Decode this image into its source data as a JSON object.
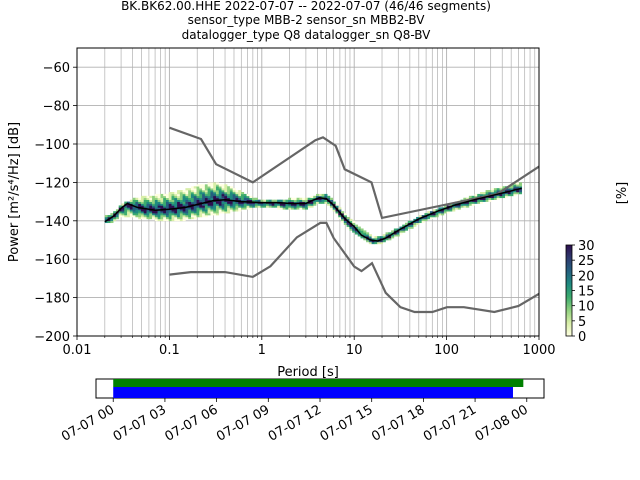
{
  "title": {
    "line1": "BK.BK62.00.HHE   2022-07-07 -- 2022-07-07  (46/46 segments)",
    "line2": "sensor_type MBB-2 sensor_sn MBB2-BV",
    "line3": "datalogger_type Q8 datalogger_sn Q8-BV"
  },
  "chart_data": {
    "type": "heatmap",
    "xlabel": "Period [s]",
    "ylabel": "Power [m²/s⁴/Hz] [dB]",
    "xscale": "log",
    "xlim": [
      0.01,
      1000
    ],
    "ylim": [
      -200,
      -50
    ],
    "x_ticks": [
      {
        "value": 0.01,
        "label": "0.01"
      },
      {
        "value": 0.1,
        "label": "0.1"
      },
      {
        "value": 1,
        "label": "1"
      },
      {
        "value": 10,
        "label": "10"
      },
      {
        "value": 100,
        "label": "100"
      },
      {
        "value": 1000,
        "label": "1000"
      }
    ],
    "y_ticks": [
      {
        "value": -60,
        "label": "−60"
      },
      {
        "value": -80,
        "label": "−80"
      },
      {
        "value": -100,
        "label": "−100"
      },
      {
        "value": -120,
        "label": "−120"
      },
      {
        "value": -140,
        "label": "−140"
      },
      {
        "value": -160,
        "label": "−160"
      },
      {
        "value": -180,
        "label": "−180"
      },
      {
        "value": -200,
        "label": "−200"
      }
    ],
    "grid": true,
    "colorbar": {
      "label": "[%]",
      "range": [
        0,
        30
      ],
      "ticks": [
        {
          "value": 0,
          "label": "0"
        },
        {
          "value": 5,
          "label": "5"
        },
        {
          "value": 10,
          "label": "10"
        },
        {
          "value": 15,
          "label": "15"
        },
        {
          "value": 20,
          "label": "20"
        },
        {
          "value": 25,
          "label": "25"
        },
        {
          "value": 30,
          "label": "30"
        }
      ],
      "colors": [
        "#ffffe0",
        "#d8eea8",
        "#8fd07f",
        "#3cab6e",
        "#1f8a80",
        "#25607f",
        "#2e3a6e",
        "#2d0f4e"
      ]
    },
    "noise_models": [
      {
        "name": "high",
        "points": [
          [
            0.1,
            -91.5
          ],
          [
            0.22,
            -97.4
          ],
          [
            0.32,
            -110.5
          ],
          [
            0.8,
            -120.0
          ],
          [
            3.8,
            -98.0
          ],
          [
            4.6,
            -96.5
          ],
          [
            6.3,
            -101.0
          ],
          [
            7.9,
            -113.2
          ],
          [
            15.4,
            -120.0
          ],
          [
            20.0,
            -138.5
          ],
          [
            354.8,
            -126.0
          ],
          [
            10000,
            -80.1
          ]
        ]
      },
      {
        "name": "low",
        "points": [
          [
            0.1,
            -168.0
          ],
          [
            0.17,
            -166.7
          ],
          [
            0.4,
            -166.7
          ],
          [
            0.8,
            -169.2
          ],
          [
            1.24,
            -163.7
          ],
          [
            2.4,
            -148.6
          ],
          [
            4.3,
            -141.1
          ],
          [
            5.0,
            -141.1
          ],
          [
            6.0,
            -149.0
          ],
          [
            10.0,
            -163.8
          ],
          [
            12.0,
            -166.2
          ],
          [
            15.6,
            -162.1
          ],
          [
            21.9,
            -177.5
          ],
          [
            31.6,
            -185.0
          ],
          [
            45.0,
            -187.5
          ],
          [
            70.0,
            -187.5
          ],
          [
            101.0,
            -185.0
          ],
          [
            154.0,
            -185.0
          ],
          [
            328.0,
            -187.5
          ],
          [
            600.0,
            -184.4
          ],
          [
            1000.0,
            -178.0
          ]
        ]
      }
    ],
    "median_line": {
      "points": [
        [
          0.02,
          -140.5
        ],
        [
          0.025,
          -137.5
        ],
        [
          0.03,
          -133.5
        ],
        [
          0.035,
          -131.0
        ],
        [
          0.045,
          -133.0
        ],
        [
          0.07,
          -134.5
        ],
        [
          0.1,
          -134.0
        ],
        [
          0.15,
          -133.0
        ],
        [
          0.2,
          -131.5
        ],
        [
          0.3,
          -129.5
        ],
        [
          0.4,
          -129.0
        ],
        [
          0.6,
          -130.0
        ],
        [
          1.0,
          -130.5
        ],
        [
          1.5,
          -130.5
        ],
        [
          2.0,
          -131.0
        ],
        [
          3.0,
          -131.0
        ],
        [
          3.5,
          -129.5
        ],
        [
          4.2,
          -128.0
        ],
        [
          5.0,
          -128.5
        ],
        [
          6.0,
          -132.0
        ],
        [
          8.0,
          -139.0
        ],
        [
          10.0,
          -143.0
        ],
        [
          12.0,
          -147.5
        ],
        [
          15.0,
          -150.0
        ],
        [
          18.0,
          -150.5
        ],
        [
          22.0,
          -149.0
        ],
        [
          30.0,
          -145.0
        ],
        [
          50.0,
          -139.0
        ],
        [
          80.0,
          -135.0
        ],
        [
          120.0,
          -132.0
        ],
        [
          200.0,
          -129.0
        ],
        [
          300.0,
          -127.0
        ],
        [
          450.0,
          -125.0
        ],
        [
          650.0,
          -123.0
        ]
      ]
    },
    "density_band": {
      "x": [
        0.02,
        0.025,
        0.03,
        0.04,
        0.05,
        0.07,
        0.1,
        0.15,
        0.2,
        0.3,
        0.4,
        0.6,
        0.8,
        1.0,
        1.5,
        2.0,
        3.0,
        4.0,
        5.0,
        6.0,
        8.0,
        10.0,
        13.0,
        16.0,
        20.0,
        30.0,
        50.0,
        80.0,
        120.0,
        200.0,
        300.0,
        450.0,
        650.0
      ],
      "upper": [
        -137.0,
        -135.0,
        -131.0,
        -128.0,
        -127.0,
        -126.0,
        -125.0,
        -123.0,
        -121.0,
        -119.5,
        -120.5,
        -124.0,
        -127.0,
        -129.0,
        -128.5,
        -128.0,
        -128.0,
        -126.0,
        -125.0,
        -129.0,
        -136.0,
        -140.0,
        -145.0,
        -148.0,
        -147.0,
        -143.0,
        -137.0,
        -133.0,
        -130.0,
        -126.0,
        -123.0,
        -121.0,
        -119.0
      ],
      "lower": [
        -142.0,
        -141.0,
        -138.0,
        -138.5,
        -139.5,
        -140.0,
        -140.5,
        -140.0,
        -139.0,
        -137.5,
        -136.5,
        -135.0,
        -134.0,
        -133.5,
        -134.0,
        -135.0,
        -134.5,
        -132.0,
        -131.5,
        -135.5,
        -143.0,
        -147.0,
        -151.0,
        -153.0,
        -152.0,
        -148.0,
        -142.0,
        -138.0,
        -135.0,
        -132.0,
        -130.0,
        -128.0,
        -126.5
      ]
    },
    "time_axis": {
      "range_hours": [
        -1,
        25
      ],
      "bar_span_hours": [
        0,
        23.8
      ],
      "data_span_hours": [
        0,
        23.2
      ],
      "ticks": [
        {
          "hour": 0,
          "label": "07-07 00"
        },
        {
          "hour": 3,
          "label": "07-07 03"
        },
        {
          "hour": 6,
          "label": "07-07 06"
        },
        {
          "hour": 9,
          "label": "07-07 09"
        },
        {
          "hour": 12,
          "label": "07-07 12"
        },
        {
          "hour": 15,
          "label": "07-07 15"
        },
        {
          "hour": 18,
          "label": "07-07 18"
        },
        {
          "hour": 21,
          "label": "07-07 21"
        },
        {
          "hour": 24,
          "label": "07-08 00"
        }
      ],
      "bar_colors": {
        "segments": "#008000",
        "data": "#0000ff"
      }
    }
  }
}
